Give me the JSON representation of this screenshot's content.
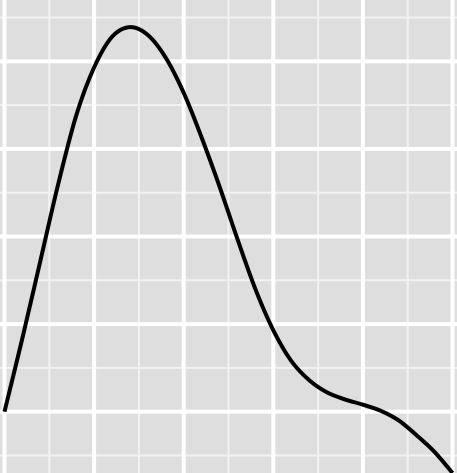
{
  "chart_data": {
    "type": "line",
    "title": "",
    "xlabel": "",
    "ylabel": "",
    "grid": true,
    "legend": "none",
    "xlim": [
      -0.05,
      5.05
    ],
    "ylim": [
      -0.07,
      0.47
    ],
    "major_x_ticks": [
      0.0,
      1.0,
      2.0,
      3.0,
      4.0,
      5.0
    ],
    "minor_x_ticks": [
      0.5,
      1.5,
      2.5,
      3.5,
      4.5
    ],
    "major_y_ticks": [
      0.0,
      0.1,
      0.2,
      0.3,
      0.4
    ],
    "minor_y_ticks": [
      -0.05,
      0.05,
      0.15,
      0.25,
      0.35,
      0.45
    ],
    "series": [
      {
        "color": "#000000",
        "x": [
          0.0,
          0.2,
          0.4,
          0.6,
          0.8,
          1.0,
          1.2,
          1.4,
          1.6,
          1.8,
          2.0,
          2.2,
          2.4,
          2.6,
          2.8,
          3.0,
          3.2,
          3.4,
          3.6,
          3.8,
          4.0,
          4.2,
          4.4,
          4.6,
          4.8,
          5.0
        ],
        "y": [
          0.0,
          0.084,
          0.172,
          0.26,
          0.338,
          0.393,
          0.428,
          0.439,
          0.43,
          0.404,
          0.364,
          0.313,
          0.257,
          0.197,
          0.14,
          0.093,
          0.058,
          0.036,
          0.022,
          0.014,
          0.008,
          0.001,
          -0.01,
          -0.027,
          -0.046,
          -0.07
        ]
      }
    ]
  }
}
